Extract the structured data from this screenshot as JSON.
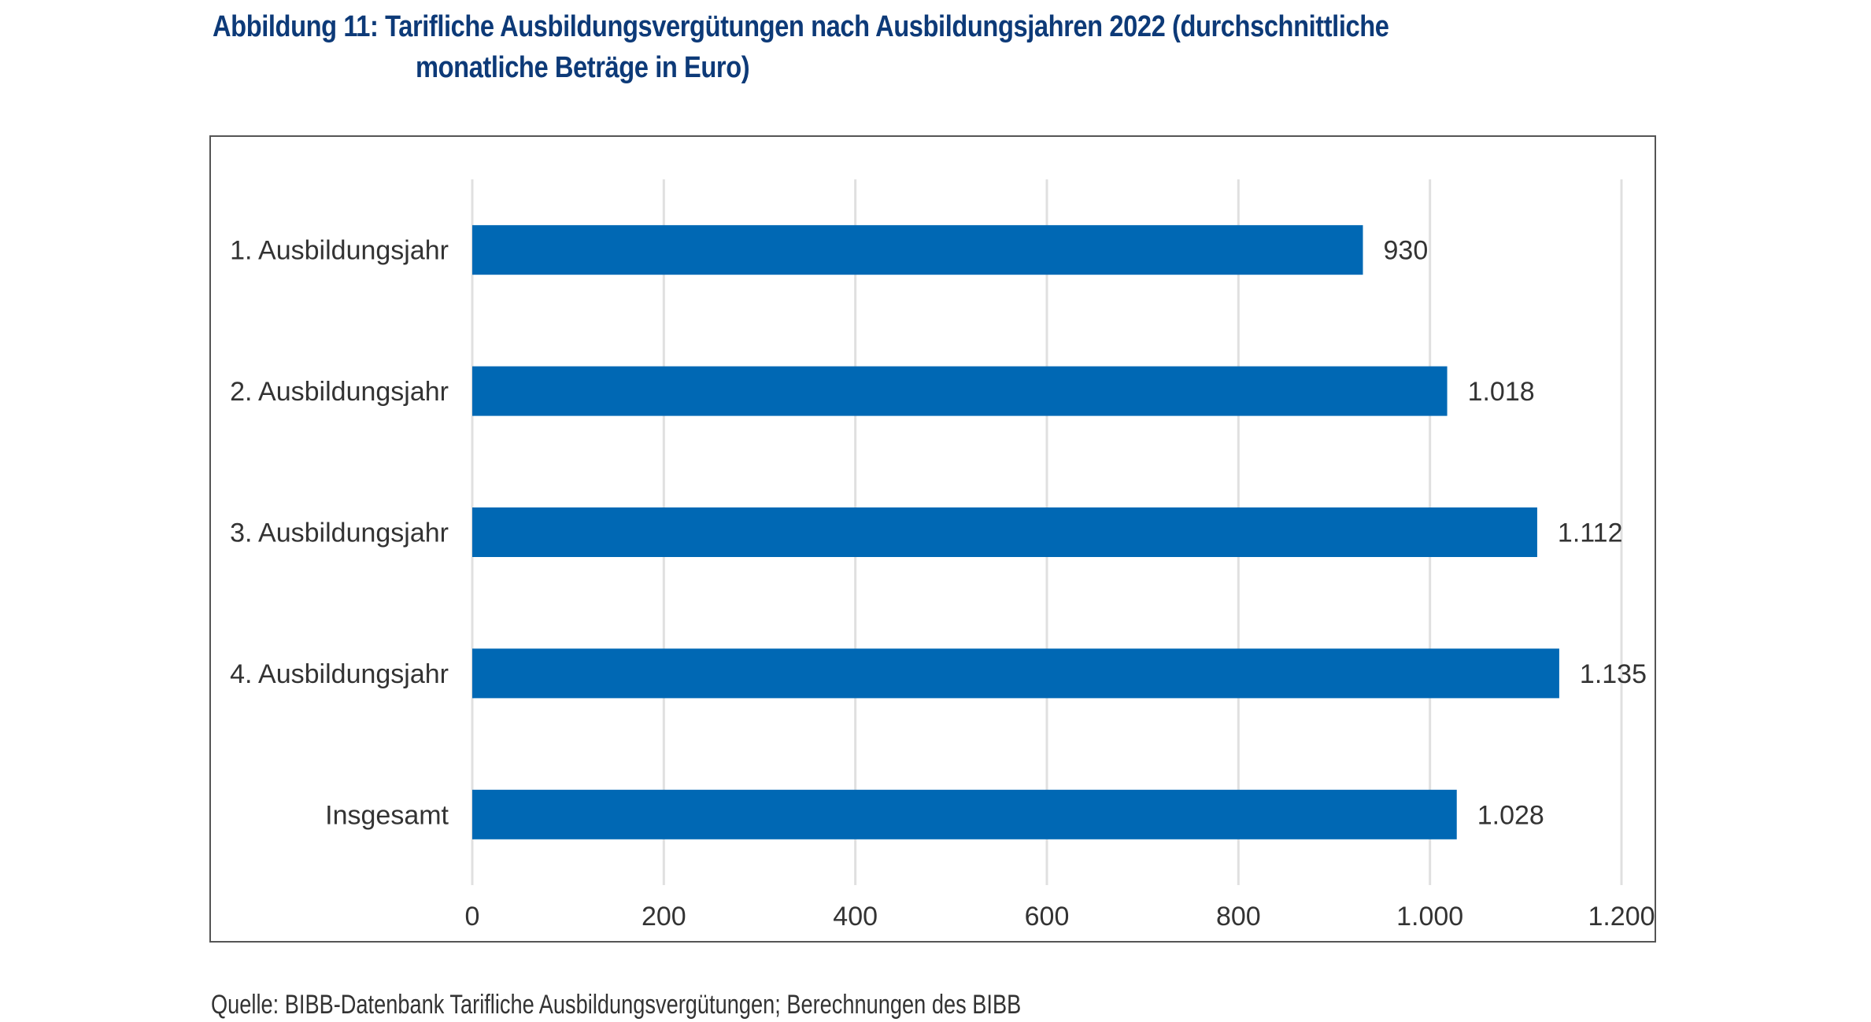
{
  "title": {
    "line1": "Abbildung 11: Tarifliche Ausbildungsvergütungen nach Ausbildungsjahren 2022 (durchschnittliche",
    "line2": "monatliche Beträge in Euro)"
  },
  "source": "Quelle: BIBB-Datenbank Tarifliche Ausbildungsvergütungen; Berechnungen des BIBB",
  "colors": {
    "bar": "#0068b4",
    "grid": "#e0e0e0",
    "title": "#0d3a78",
    "text": "#333333"
  },
  "chart_data": {
    "type": "bar",
    "orientation": "horizontal",
    "title": "Abbildung 11: Tarifliche Ausbildungsvergütungen nach Ausbildungsjahren 2022 (durchschnittliche monatliche Beträge in Euro)",
    "categories": [
      "1. Ausbildungsjahr",
      "2. Ausbildungsjahr",
      "3. Ausbildungsjahr",
      "4. Ausbildungsjahr",
      "Insgesamt"
    ],
    "values": [
      930,
      1018,
      1112,
      1135,
      1028
    ],
    "value_labels": [
      "930",
      "1.018",
      "1.112",
      "1.135",
      "1.028"
    ],
    "xlim": [
      0,
      1200
    ],
    "xticks": [
      0,
      200,
      400,
      600,
      800,
      1000,
      1200
    ],
    "xtick_labels": [
      "0",
      "200",
      "400",
      "600",
      "800",
      "1.000",
      "1.200"
    ],
    "xlabel": "",
    "ylabel": "",
    "grid": true,
    "legend": "none"
  }
}
